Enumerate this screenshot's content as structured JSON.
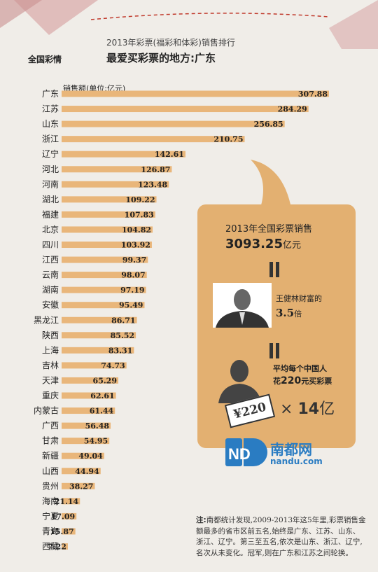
{
  "header": {
    "badge": "全国彩情",
    "subtitle": "2013年彩票(福彩和体彩)销售排行",
    "title": "最爱买彩票的地方:广东"
  },
  "chart_data": {
    "type": "bar",
    "orientation": "horizontal",
    "unit_label": "销售额(单位:亿元)",
    "categories": [
      "广东",
      "江苏",
      "山东",
      "浙江",
      "辽宁",
      "河北",
      "河南",
      "湖北",
      "福建",
      "北京",
      "四川",
      "江西",
      "云南",
      "湖南",
      "安徽",
      "黑龙江",
      "陕西",
      "上海",
      "吉林",
      "天津",
      "重庆",
      "内蒙古",
      "广西",
      "甘肃",
      "新疆",
      "山西",
      "贵州",
      "海南",
      "宁夏",
      "青海",
      "西藏"
    ],
    "values": [
      307.88,
      284.29,
      256.85,
      210.75,
      142.61,
      126.87,
      123.48,
      109.22,
      107.83,
      104.82,
      103.92,
      99.37,
      98.07,
      97.19,
      95.49,
      86.71,
      85.52,
      83.31,
      74.73,
      65.29,
      62.61,
      61.44,
      56.48,
      54.95,
      49.04,
      44.94,
      38.27,
      21.14,
      17.09,
      15.87,
      7.22
    ],
    "value_labels": [
      "307.88",
      "284.29",
      "256.85",
      "210.75",
      "142.61",
      "126.87",
      "123.48",
      "109.22",
      "107.83",
      "104.82",
      "103.92",
      "99.37",
      "98.07",
      "97.19",
      "95.49",
      "86.71",
      "85.52",
      "83.31",
      "74.73",
      "65.29",
      "62.61",
      "61.44",
      "56.48",
      "54.95",
      "49.04",
      "44.94",
      "38.27",
      "21.14",
      "17.09",
      "15.87",
      "7.22"
    ],
    "bar_color": "#e9b67a"
  },
  "callout": {
    "line1": "2013年全国彩票销售",
    "total_value": "3093.25",
    "total_unit": "亿元",
    "wealth_line": "王健林财富的",
    "wealth_value": "3.5",
    "wealth_unit": "倍",
    "avg_line1": "平均每个中国人",
    "avg_pre": "花",
    "avg_amount": "220",
    "avg_post": "元买彩票",
    "ticket": "¥220",
    "times_symbol": "×",
    "times_value": "14",
    "times_unit": "亿",
    "color": "#e3b071"
  },
  "logo": {
    "cn": "南都网",
    "en": "nandu.com",
    "mark": "ND"
  },
  "note": {
    "label": "注:",
    "text": "南都统计发现,2009-2013年这5年里,彩票销售金额最多的省市区前五名,始终是广东、江苏、山东、浙江、辽宁。第三至五名,依次是山东、浙江、辽宁,名次从未变化。冠军,则在广东和江苏之间轮换。"
  }
}
